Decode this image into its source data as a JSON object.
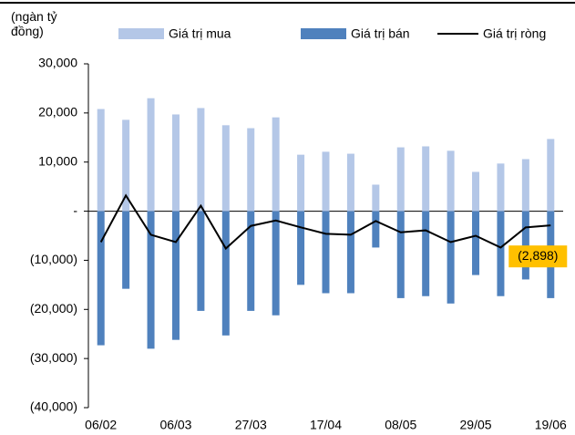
{
  "chart_data": {
    "type": "bar",
    "y_label": "(ngàn tỷ đồng)",
    "categories": [
      "06/02",
      null,
      null,
      "06/03",
      null,
      null,
      "27/03",
      null,
      null,
      "17/04",
      null,
      null,
      "08/05",
      null,
      null,
      "29/05",
      null,
      null,
      "19/06"
    ],
    "series": [
      {
        "name": "Giá trị mua",
        "color": "#b4c7e7",
        "type": "bar",
        "values": [
          20800,
          18600,
          23000,
          19700,
          21000,
          17500,
          16900,
          19100,
          11500,
          12100,
          11700,
          5400,
          13000,
          13200,
          12300,
          8000,
          9700,
          10600,
          14700
        ]
      },
      {
        "name": "Giá trị bán",
        "color": "#4f81bd",
        "type": "bar",
        "values": [
          -27300,
          -15800,
          -28000,
          -26200,
          -20300,
          -25300,
          -20300,
          -21200,
          -15000,
          -16700,
          -16700,
          -7400,
          -17700,
          -17300,
          -18800,
          -13000,
          -17300,
          -13900,
          -17700
        ]
      },
      {
        "name": "Giá trị ròng",
        "color": "#000000",
        "type": "line",
        "values": [
          -6300,
          3200,
          -4800,
          -6300,
          1100,
          -7600,
          -3000,
          -1900,
          -3300,
          -4600,
          -4800,
          -2000,
          -4300,
          -3900,
          -6300,
          -5000,
          -7400,
          -3300,
          -2898
        ],
        "value_labels": [
          null,
          null,
          null,
          null,
          null,
          null,
          null,
          null,
          null,
          null,
          null,
          null,
          null,
          null,
          null,
          null,
          null,
          null,
          "(2,898)"
        ]
      }
    ],
    "ylim": [
      -40000,
      30000
    ],
    "yticks": [
      {
        "value": 30000,
        "label": "30,000"
      },
      {
        "value": 20000,
        "label": "20,000"
      },
      {
        "value": 10000,
        "label": "10,000"
      },
      {
        "value": 0,
        "label": "-"
      },
      {
        "value": -10000,
        "label": "(10,000)"
      },
      {
        "value": -20000,
        "label": "(20,000)"
      },
      {
        "value": -30000,
        "label": "(30,000)"
      },
      {
        "value": -40000,
        "label": "(40,000)"
      }
    ],
    "label_color": "#ffc000"
  }
}
